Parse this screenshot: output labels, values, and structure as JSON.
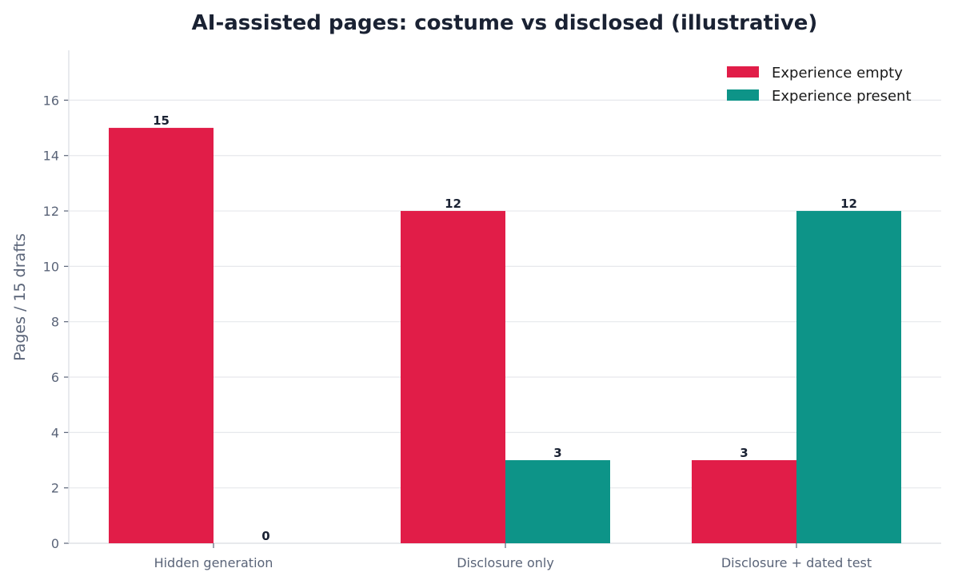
{
  "chart_data": {
    "type": "bar",
    "title": "AI-assisted pages: costume vs disclosed (illustrative)",
    "xlabel": "",
    "ylabel": "Pages / 15 drafts",
    "categories": [
      "Hidden generation",
      "Disclosure only",
      "Disclosure + dated test"
    ],
    "series": [
      {
        "name": "Experience empty",
        "values": [
          15,
          12,
          3
        ],
        "color": "#e11d48"
      },
      {
        "name": "Experience present",
        "values": [
          0,
          3,
          12
        ],
        "color": "#0d9488"
      }
    ],
    "ylim": [
      0,
      17.8
    ],
    "yticks": [
      0,
      2,
      4,
      6,
      8,
      10,
      12,
      14,
      16
    ],
    "grid": true,
    "legend_position": "top-right"
  }
}
